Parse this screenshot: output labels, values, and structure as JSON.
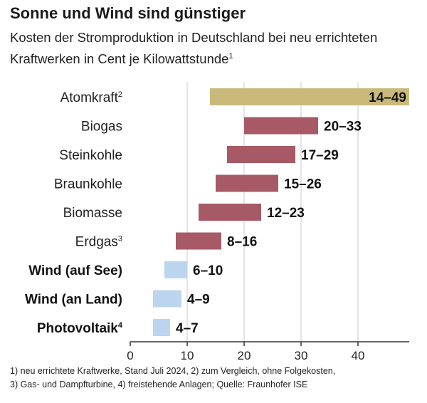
{
  "title": "Sonne und Wind sind günstiger",
  "subtitle": "Kosten der Stromproduktion in Deutschland bei neu errichteten Kraftwerken in Cent je Kilowattstunde",
  "subtitle_note": "1",
  "footnotes": [
    "1) neu errichtete Kraftwerke, Stand Juli 2024, 2) zum Vergleich, ohne Folgekosten,",
    "3) Gas- und Dampfturbine, 4) freistehende Anlagen; Quelle: Fraunhofer ISE"
  ],
  "colors": {
    "nuclear": "#c9b97a",
    "fossil": "#a75a66",
    "renewable": "#bcd5ef"
  },
  "chart_data": {
    "type": "bar",
    "orientation": "horizontal-range",
    "xlim": [
      0,
      49
    ],
    "xticks": [
      0,
      10,
      20,
      30,
      40
    ],
    "grid": true,
    "categories": [
      "Atomkraft",
      "Biogas",
      "Steinkohle",
      "Braunkohle",
      "Biomasse",
      "Erdgas",
      "Wind (auf See)",
      "Wind (an Land)",
      "Photovoltaik"
    ],
    "category_notes": [
      "2",
      "",
      "",
      "",
      "",
      "3",
      "",
      "",
      "4"
    ],
    "category_bold": [
      false,
      false,
      false,
      false,
      false,
      false,
      true,
      true,
      true
    ],
    "ranges": [
      [
        14,
        49
      ],
      [
        20,
        33
      ],
      [
        17,
        29
      ],
      [
        15,
        26
      ],
      [
        12,
        23
      ],
      [
        8,
        16
      ],
      [
        6,
        10
      ],
      [
        4,
        9
      ],
      [
        4,
        7
      ]
    ],
    "labels": [
      "14–49",
      "20–33",
      "17–29",
      "15–26",
      "12–23",
      "8–16",
      "6–10",
      "4–9",
      "4–7"
    ],
    "groups": [
      "nuclear",
      "fossil",
      "fossil",
      "fossil",
      "fossil",
      "fossil",
      "renewable",
      "renewable",
      "renewable"
    ]
  }
}
